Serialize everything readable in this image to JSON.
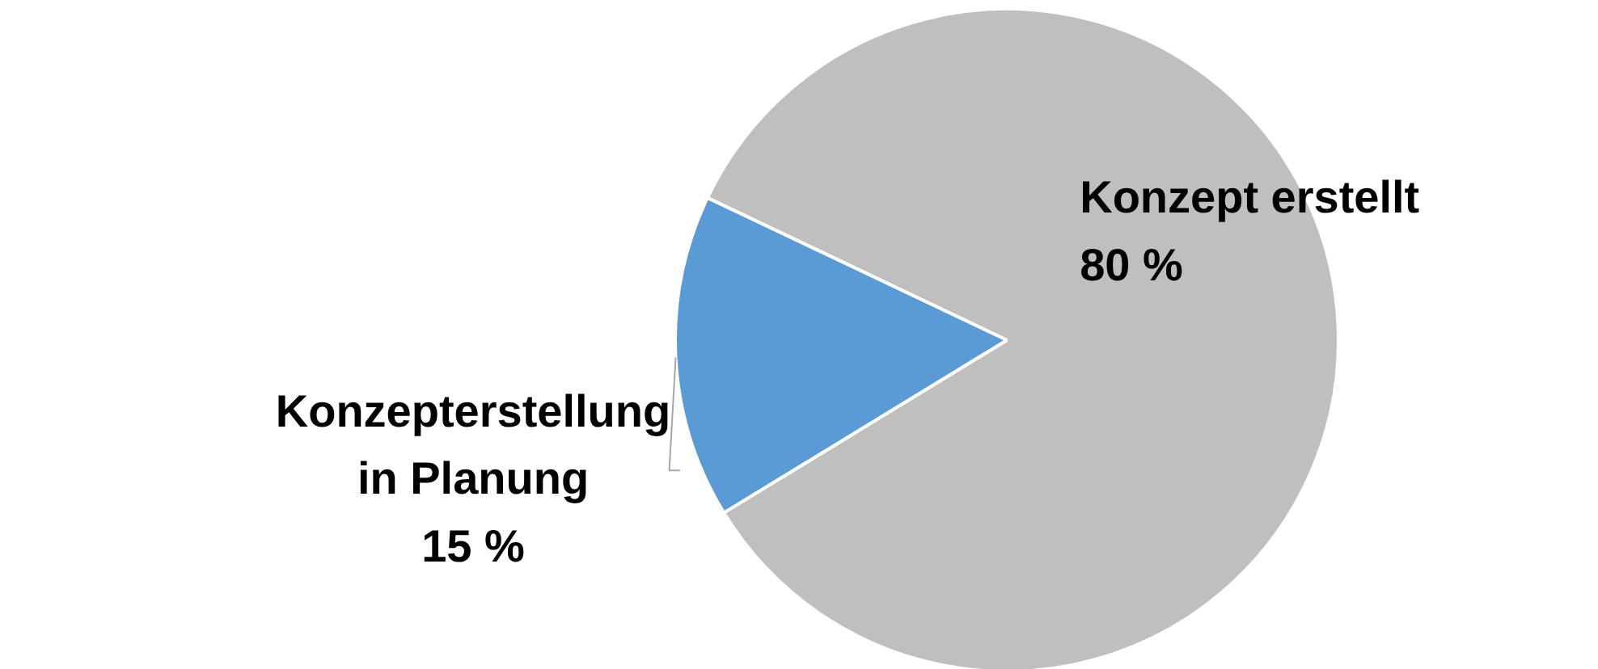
{
  "chart_data": {
    "type": "pie",
    "categories": [
      "Konzept erstellt",
      "Konzepterstellung in Planung"
    ],
    "values": [
      80,
      15
    ],
    "colors": [
      "#bfbfbf",
      "#5b9bd5"
    ],
    "value_labels": [
      "80 %",
      "15 %"
    ]
  }
}
